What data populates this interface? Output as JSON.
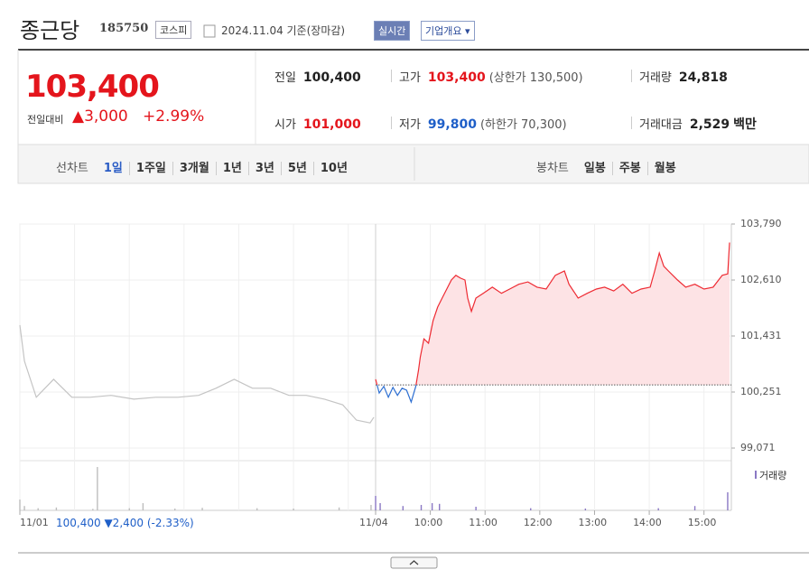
{
  "header": {
    "name": "종근당",
    "code": "185750",
    "market": "코스피",
    "date_text": "2024.11.04 기준(장마감)",
    "realtime": "실시간",
    "company_info": "기업개요 ▾"
  },
  "quote": {
    "price": "103,400",
    "change_label": "전일대비",
    "change": "▲3,000",
    "change_pct": "+2.99%"
  },
  "stats": [
    {
      "label": "전일",
      "value": "100,400"
    },
    {
      "label": "고가",
      "value": "103,400",
      "note": "(상한가 130,500)"
    },
    {
      "label": "거래량",
      "value": "24,818"
    },
    {
      "label": "시가",
      "value": "101,000"
    },
    {
      "label": "저가",
      "value": "99,800",
      "note": "(하한가 70,300)"
    },
    {
      "label": "거래대금",
      "value": "2,529",
      "unit": "백만"
    }
  ],
  "tabs": {
    "line_label": "선차트",
    "line_periods": [
      "1일",
      "1주일",
      "3개월",
      "1년",
      "3년",
      "5년",
      "10년"
    ],
    "candle_label": "봉차트",
    "candle_periods": [
      "일봉",
      "주봉",
      "월봉"
    ]
  },
  "chart_data": {
    "type": "line",
    "series": [
      {
        "color": "#c4c4c4",
        "x": [
          0,
          5,
          18,
          37,
          57,
          77,
          100,
          125,
          149,
          173,
          196,
          215,
          235,
          255,
          275,
          295,
          314,
          334,
          354,
          369,
          384,
          388
        ],
        "values": [
          101660,
          100900,
          100140,
          100520,
          100140,
          100140,
          100180,
          100100,
          100140,
          100140,
          100180,
          100330,
          100520,
          100330,
          100330,
          100180,
          100180,
          100100,
          99980,
          99660,
          99600,
          99720
        ]
      },
      {
        "color": "#ee2b33",
        "down_color": "#2d6fd2",
        "fill": "#fde3e5",
        "x": [
          390,
          394,
          399,
          404,
          409,
          414,
          419,
          424,
          429,
          434,
          437,
          439,
          443,
          448,
          453,
          458,
          463,
          468,
          473,
          478,
          483,
          488,
          491,
          495,
          500,
          508,
          518,
          528,
          537,
          547,
          557,
          567,
          577,
          587,
          597,
          602,
          612,
          622,
          632,
          641,
          651,
          661,
          671,
          681,
          691,
          696,
          701,
          706,
          711,
          721,
          730,
          740,
          750,
          760,
          770,
          776,
          778
        ],
        "values": [
          100520,
          100230,
          100370,
          100140,
          100350,
          100180,
          100330,
          100290,
          100040,
          100370,
          100710,
          100990,
          101370,
          101280,
          101750,
          102040,
          102230,
          102420,
          102610,
          102710,
          102650,
          102610,
          102230,
          101950,
          102230,
          102330,
          102460,
          102330,
          102420,
          102520,
          102570,
          102460,
          102420,
          102710,
          102800,
          102520,
          102230,
          102330,
          102420,
          102460,
          102380,
          102520,
          102330,
          102420,
          102460,
          102800,
          103180,
          102900,
          102800,
          102610,
          102460,
          102520,
          102420,
          102460,
          102710,
          102740,
          103400
        ]
      }
    ],
    "reference": 100400,
    "xlim": [
      0,
      780
    ],
    "xticks": [
      {
        "value": 0,
        "label": "11/01"
      },
      {
        "value": 390,
        "label": "11/04"
      },
      {
        "value": 450,
        "label": "10:00"
      },
      {
        "value": 510,
        "label": "11:00"
      },
      {
        "value": 570,
        "label": "12:00"
      },
      {
        "value": 630,
        "label": "13:00"
      },
      {
        "value": 690,
        "label": "14:00"
      },
      {
        "value": 750,
        "label": "15:00"
      }
    ],
    "xgrid": [
      60,
      120,
      180,
      240,
      300,
      360
    ],
    "ylim": [
      98805,
      103790
    ],
    "yticks": [
      {
        "value": 99071,
        "label": "99,071"
      },
      {
        "value": 100251,
        "label": "100,251"
      },
      {
        "value": 101431,
        "label": "101,431"
      },
      {
        "value": 102610,
        "label": "102,610"
      },
      {
        "value": 103790,
        "label": "103,790"
      }
    ],
    "grid": true
  },
  "volume": {
    "label": "거래량",
    "series": [
      {
        "color": "#bdbdbd",
        "x": [
          0,
          5,
          20,
          40,
          80,
          85,
          120,
          135,
          170,
          200,
          260,
          300,
          350,
          385
        ],
        "values": [
          300,
          120,
          60,
          80,
          40,
          1200,
          60,
          200,
          50,
          70,
          60,
          50,
          80,
          150
        ]
      },
      {
        "color": "#8a78c4",
        "x": [
          390,
          395,
          420,
          440,
          452,
          460,
          500,
          560,
          620,
          700,
          740,
          776
        ],
        "values": [
          400,
          200,
          120,
          150,
          200,
          180,
          100,
          60,
          50,
          60,
          120,
          500
        ]
      }
    ]
  },
  "footer": {
    "close": "100,400",
    "change": "▼2,400",
    "pct": "(-2.33%)"
  }
}
